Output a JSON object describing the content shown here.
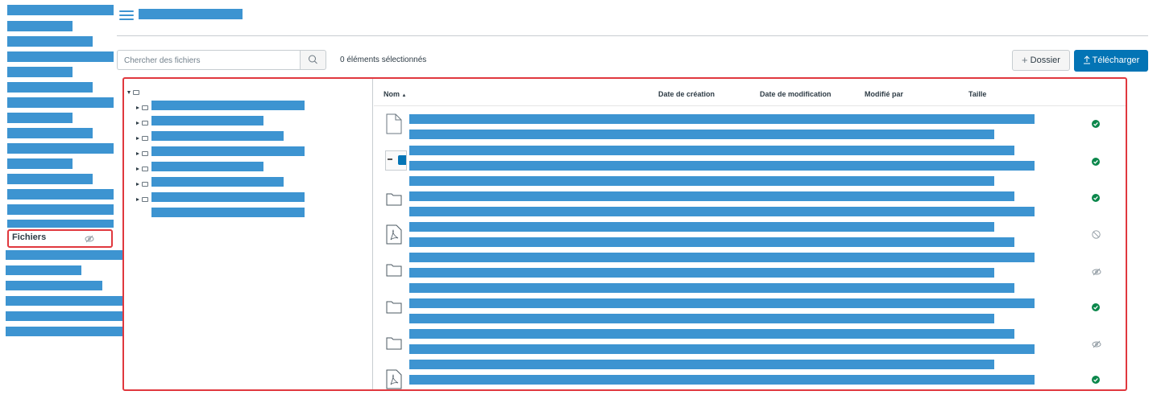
{
  "header": {
    "menu_icon": "hamburger-icon"
  },
  "nav": {
    "files_label": "Fichiers",
    "files_visibility_icon": "eye-slash-icon"
  },
  "toolbar": {
    "search_placeholder": "Chercher des fichiers",
    "search_icon": "search-icon",
    "selected_count": "0 éléments sélectionnés",
    "folder_button": "Dossier",
    "upload_button": "Télécharger"
  },
  "table": {
    "columns": {
      "name": "Nom",
      "created": "Date de création",
      "modified": "Date de modification",
      "modified_by": "Modifié par",
      "size": "Taille"
    },
    "sort_indicator": "▲",
    "rows": [
      {
        "icon": "file-icon",
        "status": "published"
      },
      {
        "icon": "thumbnail-icon",
        "status": "published"
      },
      {
        "icon": "folder-icon",
        "status": "published"
      },
      {
        "icon": "pdf-icon",
        "status": "unpublished"
      },
      {
        "icon": "folder-icon",
        "status": "hidden"
      },
      {
        "icon": "folder-icon",
        "status": "published"
      },
      {
        "icon": "folder-icon",
        "status": "hidden"
      },
      {
        "icon": "pdf-icon",
        "status": "published"
      }
    ]
  },
  "colors": {
    "primary": "#0374b5",
    "highlight_border": "#e0383e",
    "published": "#0b874b",
    "redaction": "#3d94d1"
  }
}
